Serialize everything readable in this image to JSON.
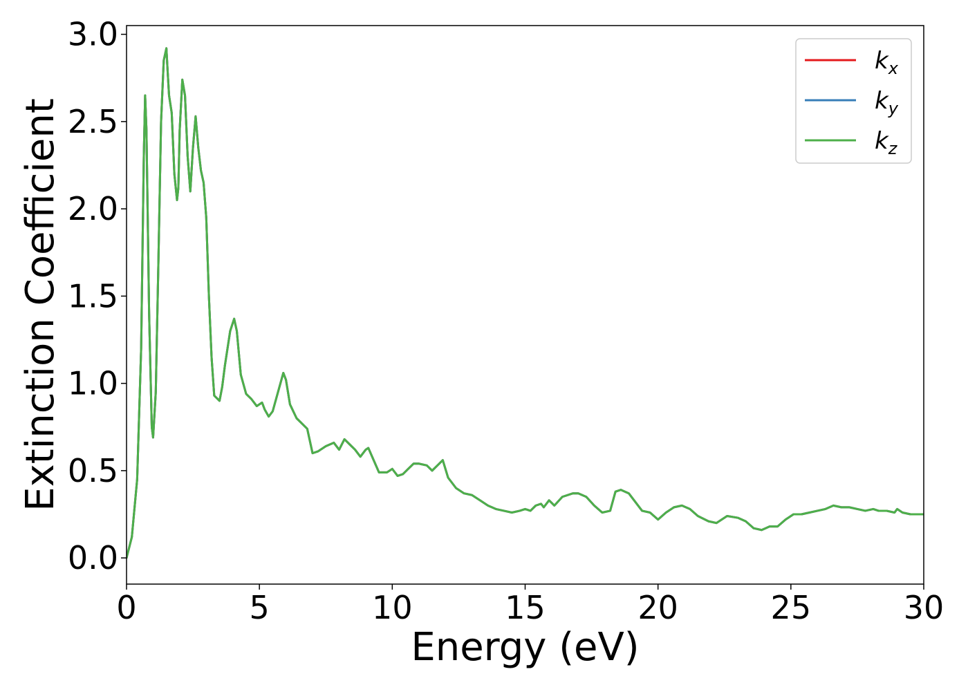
{
  "chart_data": {
    "type": "line",
    "title": "",
    "xlabel": "Energy (eV)",
    "ylabel": "Extinction Coefficient",
    "xlim": [
      0,
      30
    ],
    "ylim": [
      -0.15,
      3.05
    ],
    "xticks": [
      0,
      5,
      10,
      15,
      20,
      25,
      30
    ],
    "xtick_labels": [
      "0",
      "5",
      "10",
      "15",
      "20",
      "25",
      "30"
    ],
    "yticks": [
      0.0,
      0.5,
      1.0,
      1.5,
      2.0,
      2.5,
      3.0
    ],
    "ytick_labels": [
      "0.0",
      "0.5",
      "1.0",
      "1.5",
      "2.0",
      "2.5",
      "3.0"
    ],
    "grid": false,
    "legend_position": "top-right",
    "x": [
      0,
      0.2,
      0.4,
      0.55,
      0.65,
      0.7,
      0.75,
      0.85,
      0.95,
      1.0,
      1.1,
      1.2,
      1.3,
      1.4,
      1.5,
      1.55,
      1.6,
      1.7,
      1.8,
      1.9,
      1.95,
      2.0,
      2.1,
      2.2,
      2.3,
      2.4,
      2.5,
      2.6,
      2.7,
      2.8,
      2.9,
      3.0,
      3.1,
      3.2,
      3.3,
      3.5,
      3.6,
      3.7,
      3.9,
      4.05,
      4.15,
      4.3,
      4.5,
      4.7,
      4.9,
      5.1,
      5.2,
      5.35,
      5.5,
      5.7,
      5.9,
      6.0,
      6.15,
      6.4,
      6.6,
      6.8,
      7.0,
      7.2,
      7.5,
      7.8,
      8.0,
      8.2,
      8.4,
      8.6,
      8.8,
      9.0,
      9.1,
      9.3,
      9.5,
      9.8,
      10.0,
      10.2,
      10.4,
      10.6,
      10.8,
      11.0,
      11.3,
      11.5,
      11.7,
      11.9,
      12.1,
      12.4,
      12.7,
      13.0,
      13.3,
      13.6,
      13.9,
      14.2,
      14.5,
      14.8,
      15.0,
      15.2,
      15.4,
      15.6,
      15.7,
      15.9,
      16.1,
      16.4,
      16.8,
      17.0,
      17.3,
      17.6,
      17.9,
      18.2,
      18.4,
      18.6,
      18.9,
      19.1,
      19.4,
      19.7,
      20.0,
      20.3,
      20.6,
      20.9,
      21.2,
      21.5,
      21.9,
      22.2,
      22.6,
      23.0,
      23.3,
      23.6,
      23.9,
      24.2,
      24.5,
      24.8,
      25.1,
      25.4,
      25.7,
      26.0,
      26.3,
      26.6,
      26.9,
      27.2,
      27.5,
      27.8,
      28.1,
      28.3,
      28.6,
      28.9,
      29.0,
      29.2,
      29.5,
      29.8,
      30.0
    ],
    "series": [
      {
        "name": "k_x",
        "color": "#e41a1c",
        "values": [
          0.0,
          0.12,
          0.45,
          1.2,
          2.3,
          2.65,
          2.45,
          1.4,
          0.75,
          0.69,
          0.95,
          1.7,
          2.5,
          2.85,
          2.92,
          2.78,
          2.65,
          2.55,
          2.2,
          2.05,
          2.12,
          2.45,
          2.74,
          2.65,
          2.3,
          2.1,
          2.35,
          2.53,
          2.35,
          2.22,
          2.15,
          1.95,
          1.5,
          1.15,
          0.93,
          0.9,
          0.98,
          1.1,
          1.3,
          1.37,
          1.3,
          1.05,
          0.94,
          0.91,
          0.87,
          0.89,
          0.85,
          0.81,
          0.84,
          0.95,
          1.06,
          1.02,
          0.88,
          0.8,
          0.77,
          0.74,
          0.6,
          0.61,
          0.64,
          0.66,
          0.62,
          0.68,
          0.65,
          0.62,
          0.58,
          0.62,
          0.63,
          0.56,
          0.49,
          0.49,
          0.51,
          0.47,
          0.48,
          0.51,
          0.54,
          0.54,
          0.53,
          0.5,
          0.53,
          0.56,
          0.46,
          0.4,
          0.37,
          0.36,
          0.33,
          0.3,
          0.28,
          0.27,
          0.26,
          0.27,
          0.28,
          0.27,
          0.3,
          0.31,
          0.29,
          0.33,
          0.3,
          0.35,
          0.37,
          0.37,
          0.35,
          0.3,
          0.26,
          0.27,
          0.38,
          0.39,
          0.37,
          0.33,
          0.27,
          0.26,
          0.22,
          0.26,
          0.29,
          0.3,
          0.28,
          0.24,
          0.21,
          0.2,
          0.24,
          0.23,
          0.21,
          0.17,
          0.16,
          0.18,
          0.18,
          0.22,
          0.25,
          0.25,
          0.26,
          0.27,
          0.28,
          0.3,
          0.29,
          0.29,
          0.28,
          0.27,
          0.28,
          0.27,
          0.27,
          0.26,
          0.28,
          0.26,
          0.25,
          0.25,
          0.25
        ]
      },
      {
        "name": "k_y",
        "color": "#377eb8",
        "values": [
          0.0,
          0.12,
          0.45,
          1.2,
          2.3,
          2.65,
          2.45,
          1.4,
          0.75,
          0.69,
          0.95,
          1.7,
          2.5,
          2.85,
          2.92,
          2.78,
          2.65,
          2.55,
          2.2,
          2.05,
          2.12,
          2.45,
          2.74,
          2.65,
          2.3,
          2.1,
          2.35,
          2.53,
          2.35,
          2.22,
          2.15,
          1.95,
          1.5,
          1.15,
          0.93,
          0.9,
          0.98,
          1.1,
          1.3,
          1.37,
          1.3,
          1.05,
          0.94,
          0.91,
          0.87,
          0.89,
          0.85,
          0.81,
          0.84,
          0.95,
          1.06,
          1.02,
          0.88,
          0.8,
          0.77,
          0.74,
          0.6,
          0.61,
          0.64,
          0.66,
          0.62,
          0.68,
          0.65,
          0.62,
          0.58,
          0.62,
          0.63,
          0.56,
          0.49,
          0.49,
          0.51,
          0.47,
          0.48,
          0.51,
          0.54,
          0.54,
          0.53,
          0.5,
          0.53,
          0.56,
          0.46,
          0.4,
          0.37,
          0.36,
          0.33,
          0.3,
          0.28,
          0.27,
          0.26,
          0.27,
          0.28,
          0.27,
          0.3,
          0.31,
          0.29,
          0.33,
          0.3,
          0.35,
          0.37,
          0.37,
          0.35,
          0.3,
          0.26,
          0.27,
          0.38,
          0.39,
          0.37,
          0.33,
          0.27,
          0.26,
          0.22,
          0.26,
          0.29,
          0.3,
          0.28,
          0.24,
          0.21,
          0.2,
          0.24,
          0.23,
          0.21,
          0.17,
          0.16,
          0.18,
          0.18,
          0.22,
          0.25,
          0.25,
          0.26,
          0.27,
          0.28,
          0.3,
          0.29,
          0.29,
          0.28,
          0.27,
          0.28,
          0.27,
          0.27,
          0.26,
          0.28,
          0.26,
          0.25,
          0.25,
          0.25
        ]
      },
      {
        "name": "k_z",
        "color": "#4daf4a",
        "values": [
          0.0,
          0.12,
          0.45,
          1.2,
          2.3,
          2.65,
          2.45,
          1.4,
          0.75,
          0.69,
          0.95,
          1.7,
          2.5,
          2.85,
          2.92,
          2.78,
          2.65,
          2.55,
          2.2,
          2.05,
          2.12,
          2.45,
          2.74,
          2.65,
          2.3,
          2.1,
          2.35,
          2.53,
          2.35,
          2.22,
          2.15,
          1.95,
          1.5,
          1.15,
          0.93,
          0.9,
          0.98,
          1.1,
          1.3,
          1.37,
          1.3,
          1.05,
          0.94,
          0.91,
          0.87,
          0.89,
          0.85,
          0.81,
          0.84,
          0.95,
          1.06,
          1.02,
          0.88,
          0.8,
          0.77,
          0.74,
          0.6,
          0.61,
          0.64,
          0.66,
          0.62,
          0.68,
          0.65,
          0.62,
          0.58,
          0.62,
          0.63,
          0.56,
          0.49,
          0.49,
          0.51,
          0.47,
          0.48,
          0.51,
          0.54,
          0.54,
          0.53,
          0.5,
          0.53,
          0.56,
          0.46,
          0.4,
          0.37,
          0.36,
          0.33,
          0.3,
          0.28,
          0.27,
          0.26,
          0.27,
          0.28,
          0.27,
          0.3,
          0.31,
          0.29,
          0.33,
          0.3,
          0.35,
          0.37,
          0.37,
          0.35,
          0.3,
          0.26,
          0.27,
          0.38,
          0.39,
          0.37,
          0.33,
          0.27,
          0.26,
          0.22,
          0.26,
          0.29,
          0.3,
          0.28,
          0.24,
          0.21,
          0.2,
          0.24,
          0.23,
          0.21,
          0.17,
          0.16,
          0.18,
          0.18,
          0.22,
          0.25,
          0.25,
          0.26,
          0.27,
          0.28,
          0.3,
          0.29,
          0.29,
          0.28,
          0.27,
          0.28,
          0.27,
          0.27,
          0.26,
          0.28,
          0.26,
          0.25,
          0.25,
          0.25
        ]
      }
    ],
    "legend": [
      {
        "base": "k",
        "sub": "x",
        "color": "#e41a1c"
      },
      {
        "base": "k",
        "sub": "y",
        "color": "#377eb8"
      },
      {
        "base": "k",
        "sub": "z",
        "color": "#4daf4a"
      }
    ]
  }
}
